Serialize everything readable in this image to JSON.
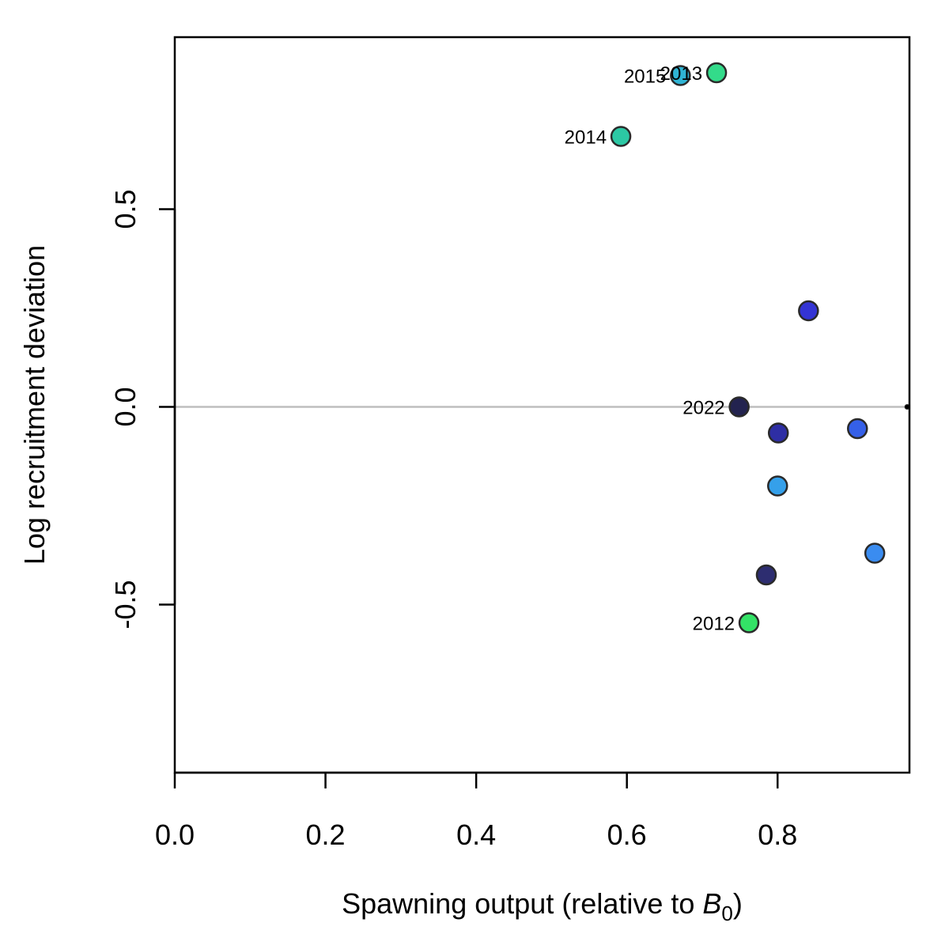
{
  "chart_data": {
    "type": "scatter",
    "xlabel": {
      "prefix": "Spawning output (relative to ",
      "symbol": "B",
      "subscript": "0",
      "suffix": ")"
    },
    "ylabel": "Log recruitment deviation",
    "xlim": [
      0,
      0.975
    ],
    "ylim": [
      -0.925,
      0.935
    ],
    "x_ticks": [
      {
        "value": 0.0,
        "label": "0.0"
      },
      {
        "value": 0.2,
        "label": "0.2"
      },
      {
        "value": 0.4,
        "label": "0.4"
      },
      {
        "value": 0.6,
        "label": "0.6"
      },
      {
        "value": 0.8,
        "label": "0.8"
      }
    ],
    "y_ticks": [
      {
        "value": -0.5,
        "label": "-0.5"
      },
      {
        "value": 0.0,
        "label": "0.0"
      },
      {
        "value": 0.5,
        "label": "0.5"
      }
    ],
    "reference_line": {
      "y": 0.0,
      "color": "#bebebe"
    },
    "grid": false,
    "points": [
      {
        "x": 0.972,
        "y": 0.0,
        "label": "",
        "color": "#000000",
        "size": "tiny"
      },
      {
        "x": 0.929,
        "y": -0.37,
        "label": "",
        "color": "#3a8cf0"
      },
      {
        "x": 0.906,
        "y": -0.055,
        "label": "",
        "color": "#3560e8"
      },
      {
        "x": 0.841,
        "y": 0.243,
        "label": "",
        "color": "#3434d4"
      },
      {
        "x": 0.801,
        "y": -0.066,
        "label": "",
        "color": "#2e2ea4"
      },
      {
        "x": 0.785,
        "y": -0.425,
        "label": "",
        "color": "#2d2d70"
      },
      {
        "x": 0.749,
        "y": 0.0,
        "label": "2022",
        "color": "#23234f"
      },
      {
        "x": 0.8,
        "y": -0.2,
        "label": "",
        "color": "#35a0ea"
      },
      {
        "x": 0.671,
        "y": 0.838,
        "label": "2015",
        "color": "#2fb4d4"
      },
      {
        "x": 0.719,
        "y": 0.845,
        "label": "2013",
        "color": "#33db8a"
      },
      {
        "x": 0.592,
        "y": 0.684,
        "label": "2014",
        "color": "#2cc8a4"
      },
      {
        "x": 0.762,
        "y": -0.546,
        "label": "2012",
        "color": "#33e266"
      }
    ]
  }
}
